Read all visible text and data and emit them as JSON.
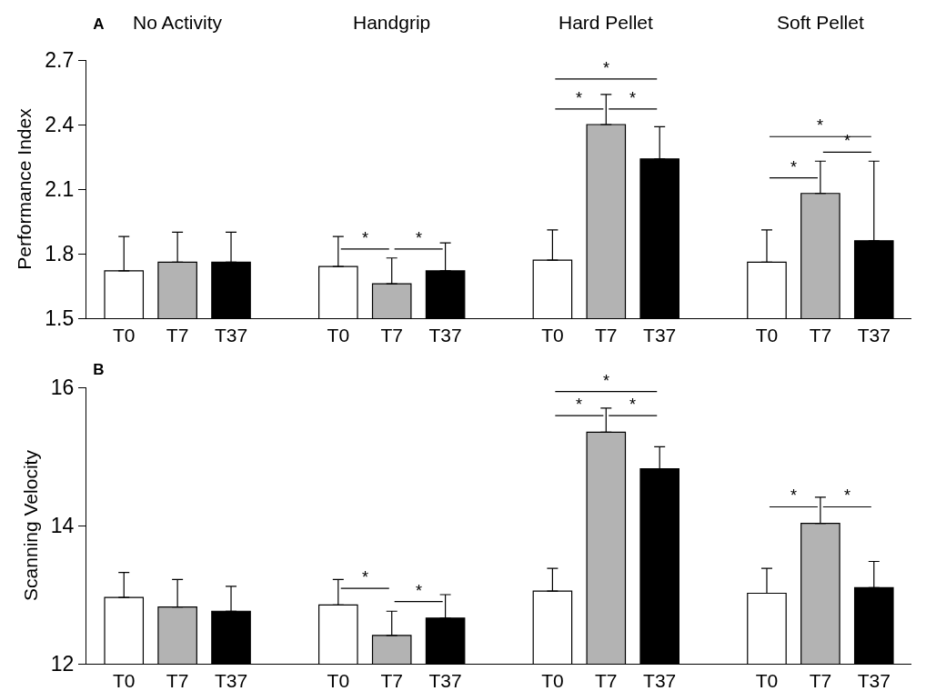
{
  "chart_data": [
    {
      "type": "bar",
      "title": "A",
      "ylabel": "Performance Index",
      "categories": [
        "T0",
        "T7",
        "T37",
        null,
        "T0",
        "T7",
        "T37",
        null,
        "T0",
        "T7",
        "T37",
        null,
        "T0",
        "T7",
        "T37"
      ],
      "values": [
        1.72,
        1.76,
        1.76,
        null,
        1.74,
        1.66,
        1.72,
        null,
        1.77,
        2.4,
        2.24,
        null,
        1.76,
        2.08,
        1.86
      ],
      "colors": [
        "#ffffff",
        "#b3b3b3",
        "#000000",
        null,
        "#ffffff",
        "#b3b3b3",
        "#000000",
        null,
        "#ffffff",
        "#b3b3b3",
        "#000000",
        null,
        "#ffffff",
        "#b3b3b3",
        "#000000"
      ],
      "errors": [
        [
          1.72,
          1.88
        ],
        [
          1.76,
          1.9
        ],
        [
          1.76,
          1.9
        ],
        null,
        [
          1.74,
          1.88
        ],
        [
          1.66,
          1.78
        ],
        [
          1.72,
          1.85
        ],
        null,
        [
          1.77,
          1.91
        ],
        [
          2.4,
          2.54
        ],
        [
          2.24,
          2.39
        ],
        null,
        [
          1.76,
          1.91
        ],
        [
          2.08,
          2.23
        ],
        [
          1.86,
          2.23
        ]
      ],
      "ylim": [
        1.5,
        2.7
      ],
      "yticks": [
        1.5,
        1.8,
        2.1,
        2.4,
        2.7
      ],
      "grid": false,
      "legend": false,
      "annotations": [
        "No Activity",
        "Handgrip",
        "Hard Pellet",
        "Soft Pellet",
        "*",
        "*",
        "*",
        "*",
        "*",
        "*",
        "*",
        "*"
      ]
    },
    {
      "type": "bar",
      "title": "B",
      "ylabel": "Scanning Velocity",
      "categories": [
        "T0",
        "T7",
        "T37",
        null,
        "T0",
        "T7",
        "T37",
        null,
        "T0",
        "T7",
        "T37",
        null,
        "T0",
        "T7",
        "T37"
      ],
      "values": [
        12.96,
        12.82,
        12.76,
        null,
        12.85,
        12.41,
        12.66,
        null,
        13.05,
        15.35,
        14.82,
        null,
        13.02,
        14.03,
        13.1
      ],
      "colors": [
        "#ffffff",
        "#b3b3b3",
        "#000000",
        null,
        "#ffffff",
        "#b3b3b3",
        "#000000",
        null,
        "#ffffff",
        "#b3b3b3",
        "#000000",
        null,
        "#ffffff",
        "#b3b3b3",
        "#000000"
      ],
      "errors": [
        [
          12.96,
          13.32
        ],
        [
          12.82,
          13.22
        ],
        [
          12.76,
          13.12
        ],
        null,
        [
          12.85,
          13.22
        ],
        [
          12.41,
          12.76
        ],
        [
          12.66,
          13.0
        ],
        null,
        [
          13.05,
          13.38
        ],
        [
          15.35,
          15.7
        ],
        [
          14.82,
          15.14
        ],
        null,
        [
          13.02,
          13.38
        ],
        [
          14.03,
          14.41
        ],
        [
          13.1,
          13.48
        ]
      ],
      "ylim": [
        12,
        16
      ],
      "yticks": [
        12,
        14,
        16
      ],
      "grid": false,
      "legend": false,
      "annotations": [
        "*",
        "*",
        "*",
        "*",
        "*",
        "*",
        "*"
      ]
    }
  ]
}
